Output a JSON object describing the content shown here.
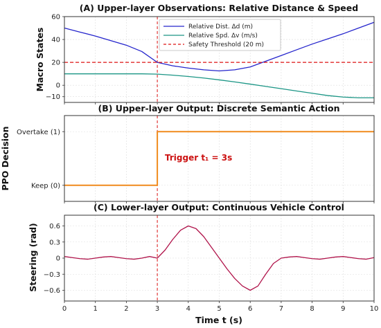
{
  "chart_data": [
    {
      "type": "line",
      "title": "(A) Upper-layer Observations: Relative Distance & Speed",
      "ylabel": "Macro States",
      "ylim": [
        -15,
        60
      ],
      "yticks": [
        "60",
        "40",
        "20",
        "0",
        "−10"
      ],
      "ytick_values": [
        60,
        40,
        20,
        0,
        -10
      ],
      "xlim": [
        0,
        10
      ],
      "grid": true,
      "legend_position": "top-center",
      "series": [
        {
          "name": "Relative Dist. Δd (m)",
          "color": "#2424cc",
          "x": [
            0,
            0.5,
            1,
            1.5,
            2,
            2.5,
            3,
            3.5,
            4,
            4.5,
            5,
            5.5,
            6,
            6.5,
            7,
            7.5,
            8,
            8.5,
            9,
            9.5,
            10
          ],
          "values": [
            50,
            46.5,
            43,
            39,
            35,
            29.5,
            20,
            17,
            15,
            13.5,
            12.5,
            13.5,
            16,
            21,
            26,
            31,
            36,
            40.5,
            45,
            50,
            55
          ]
        },
        {
          "name": "Relative Spd. Δv (m/s)",
          "color": "#1a9585",
          "x": [
            0,
            0.5,
            1,
            1.5,
            2,
            2.5,
            3,
            3.5,
            4,
            4.5,
            5,
            5.5,
            6,
            6.5,
            7,
            7.5,
            8,
            8.5,
            9,
            9.5,
            10
          ],
          "values": [
            10,
            10,
            10,
            10,
            10,
            10,
            9.7,
            8.8,
            7.7,
            6.3,
            4.7,
            2.9,
            1,
            -1,
            -3,
            -5,
            -7,
            -9,
            -10.3,
            -11,
            -11
          ]
        },
        {
          "name": "Safety Threshold (20 m)",
          "color": "#dd1111",
          "dashed": true,
          "x": [
            0,
            10
          ],
          "values": [
            20,
            20
          ]
        }
      ]
    },
    {
      "type": "line",
      "title": "(B) Upper-layer Output: Discrete Semantic Action",
      "ylabel": "PPO Decision",
      "yticks": [
        "Overtake (1)",
        "Keep (0)"
      ],
      "ytick_values": [
        1,
        0
      ],
      "ylim": [
        -0.3,
        1.3
      ],
      "xlim": [
        0,
        10
      ],
      "grid": true,
      "annotation": "Trigger t₁ = 3s",
      "series": [
        {
          "color": "#f08a1c",
          "step": true,
          "x": [
            0,
            3,
            3,
            10
          ],
          "values": [
            0,
            0,
            1,
            1
          ]
        }
      ]
    },
    {
      "type": "line",
      "title": "(C) Lower-layer Output: Continuous Vehicle Control",
      "ylabel": "Steering (rad)",
      "xlabel": "Time t (s)",
      "ylim": [
        -0.8,
        0.8
      ],
      "yticks": [
        "0.6",
        "0.3",
        "0",
        "−0.3",
        "−0.6"
      ],
      "ytick_values": [
        0.6,
        0.3,
        0,
        -0.3,
        -0.6
      ],
      "xlim": [
        0,
        10
      ],
      "xticks": [
        "0",
        "1",
        "2",
        "3",
        "4",
        "5",
        "6",
        "7",
        "8",
        "9",
        "10"
      ],
      "xtick_values": [
        0,
        1,
        2,
        3,
        4,
        5,
        6,
        7,
        8,
        9,
        10
      ],
      "grid": true,
      "series": [
        {
          "color": "#b0134a",
          "x": [
            0,
            0.25,
            0.5,
            0.75,
            1,
            1.25,
            1.5,
            1.75,
            2,
            2.25,
            2.5,
            2.75,
            3,
            3.25,
            3.5,
            3.75,
            4,
            4.25,
            4.5,
            4.75,
            5,
            5.25,
            5.5,
            5.75,
            6,
            6.25,
            6.5,
            6.75,
            7,
            7.25,
            7.5,
            7.75,
            8,
            8.25,
            8.5,
            8.75,
            9,
            9.25,
            9.5,
            9.75,
            10
          ],
          "values": [
            0.03,
            0.01,
            -0.01,
            -0.02,
            0.0,
            0.02,
            0.03,
            0.01,
            -0.01,
            -0.02,
            0.0,
            0.03,
            0.0,
            0.15,
            0.35,
            0.52,
            0.6,
            0.55,
            0.4,
            0.2,
            0.0,
            -0.2,
            -0.38,
            -0.52,
            -0.6,
            -0.52,
            -0.3,
            -0.1,
            0.0,
            0.02,
            0.03,
            0.01,
            -0.01,
            -0.02,
            0.0,
            0.02,
            0.03,
            0.01,
            -0.01,
            -0.02,
            0.01
          ]
        }
      ]
    }
  ],
  "trigger_line": {
    "x": 3,
    "color": "#dd1111"
  }
}
